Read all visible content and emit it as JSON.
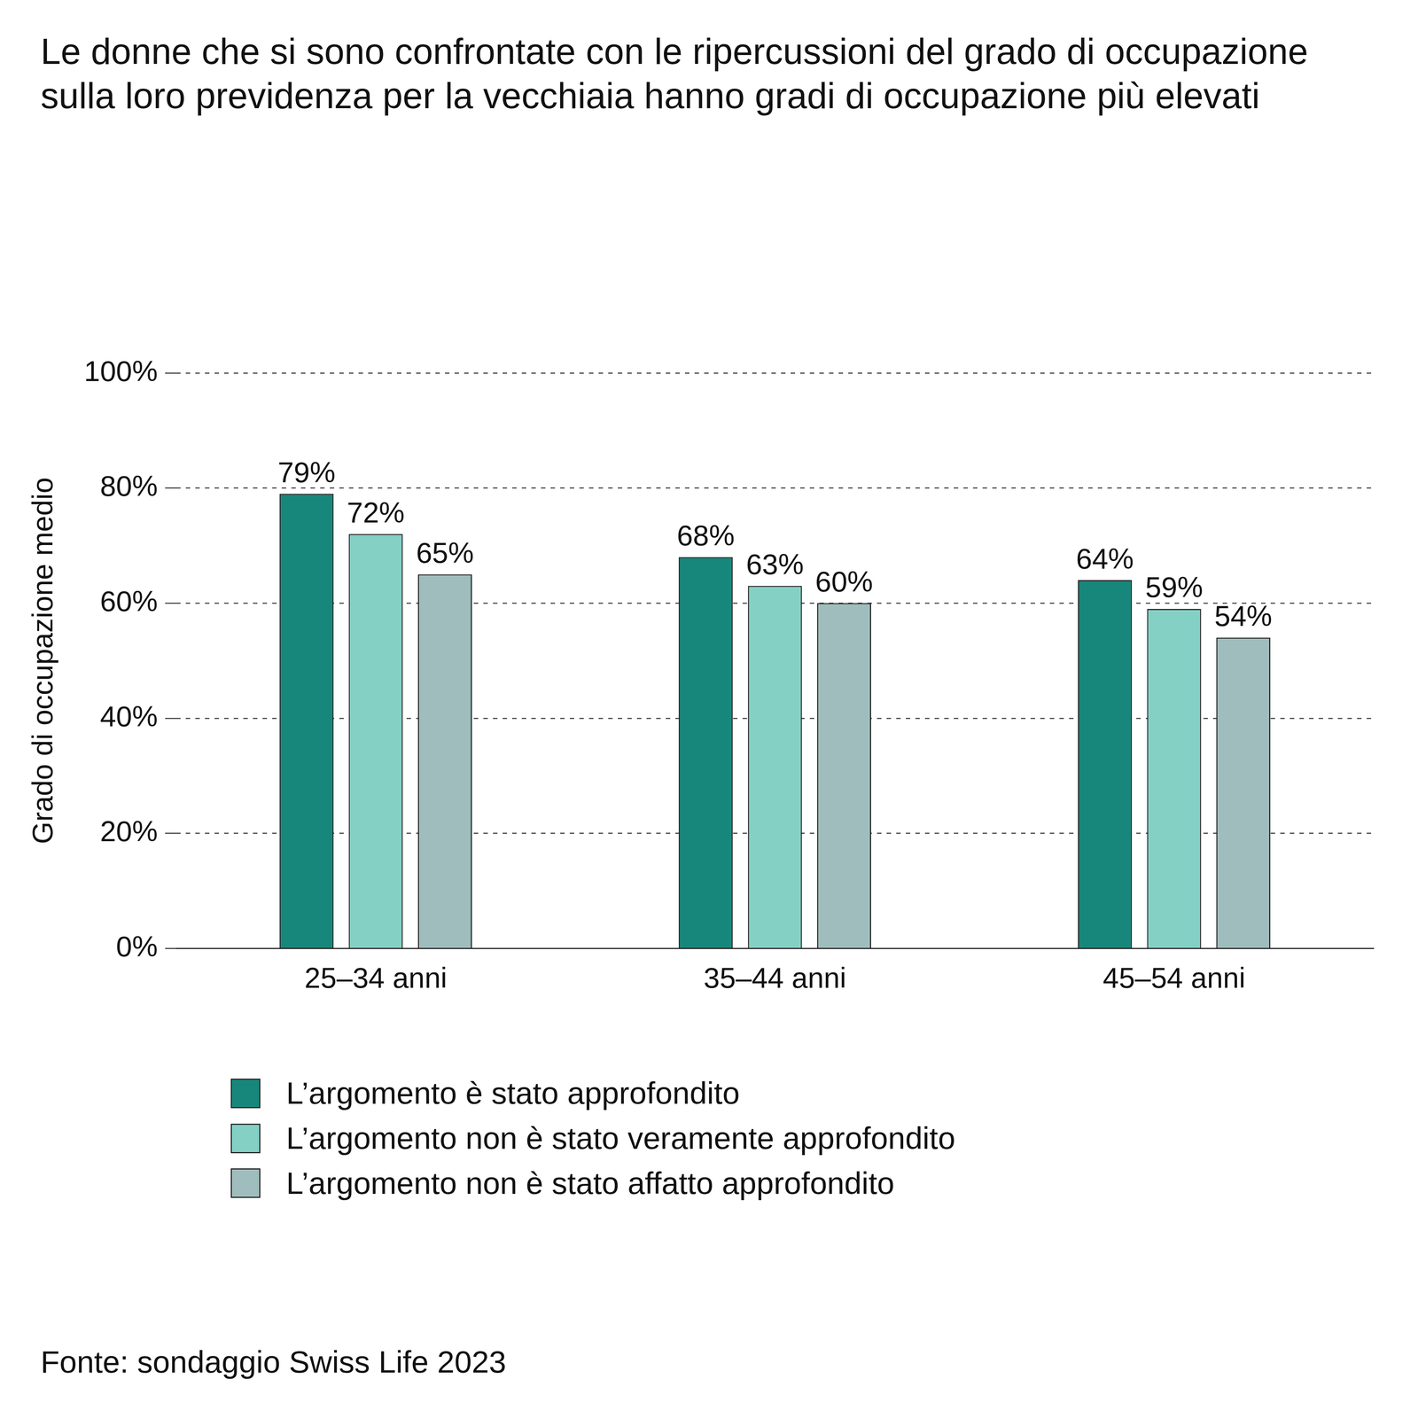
{
  "chart_data": {
    "type": "bar",
    "title": "Le donne che si sono confrontate con le ripercussioni del grado di occupazione sulla loro previdenza per la vecchiaia hanno gradi di occupazione più elevati",
    "y_label": "Grado di occupazione medio",
    "source": "Fonte: sondaggio Swiss Life 2023",
    "categories": [
      "25–34 anni",
      "35–44 anni",
      "45–54 anni"
    ],
    "series": [
      {
        "name": "L’argomento è stato approfondito",
        "color": "#17877b",
        "values": [
          79,
          68,
          64
        ],
        "value_labels": [
          "79%",
          "68%",
          "64%"
        ]
      },
      {
        "name": "L’argomento non è stato veramente approfondito",
        "color": "#84d0c5",
        "values": [
          72,
          63,
          59
        ],
        "value_labels": [
          "72%",
          "63%",
          "59%"
        ]
      },
      {
        "name": "L’argomento non è stato affatto approfondito",
        "color": "#9fbdbc",
        "values": [
          65,
          60,
          54
        ],
        "value_labels": [
          "65%",
          "60%",
          "54%"
        ]
      }
    ],
    "ylim": [
      0,
      100
    ],
    "yticks": [
      {
        "value": 0,
        "label": "0%"
      },
      {
        "value": 20,
        "label": "20%"
      },
      {
        "value": 40,
        "label": "40%"
      },
      {
        "value": 60,
        "label": "60%"
      },
      {
        "value": 80,
        "label": "80%"
      },
      {
        "value": 100,
        "label": "100%"
      }
    ],
    "grid": true,
    "legend": "bottom",
    "data_labels": true
  }
}
